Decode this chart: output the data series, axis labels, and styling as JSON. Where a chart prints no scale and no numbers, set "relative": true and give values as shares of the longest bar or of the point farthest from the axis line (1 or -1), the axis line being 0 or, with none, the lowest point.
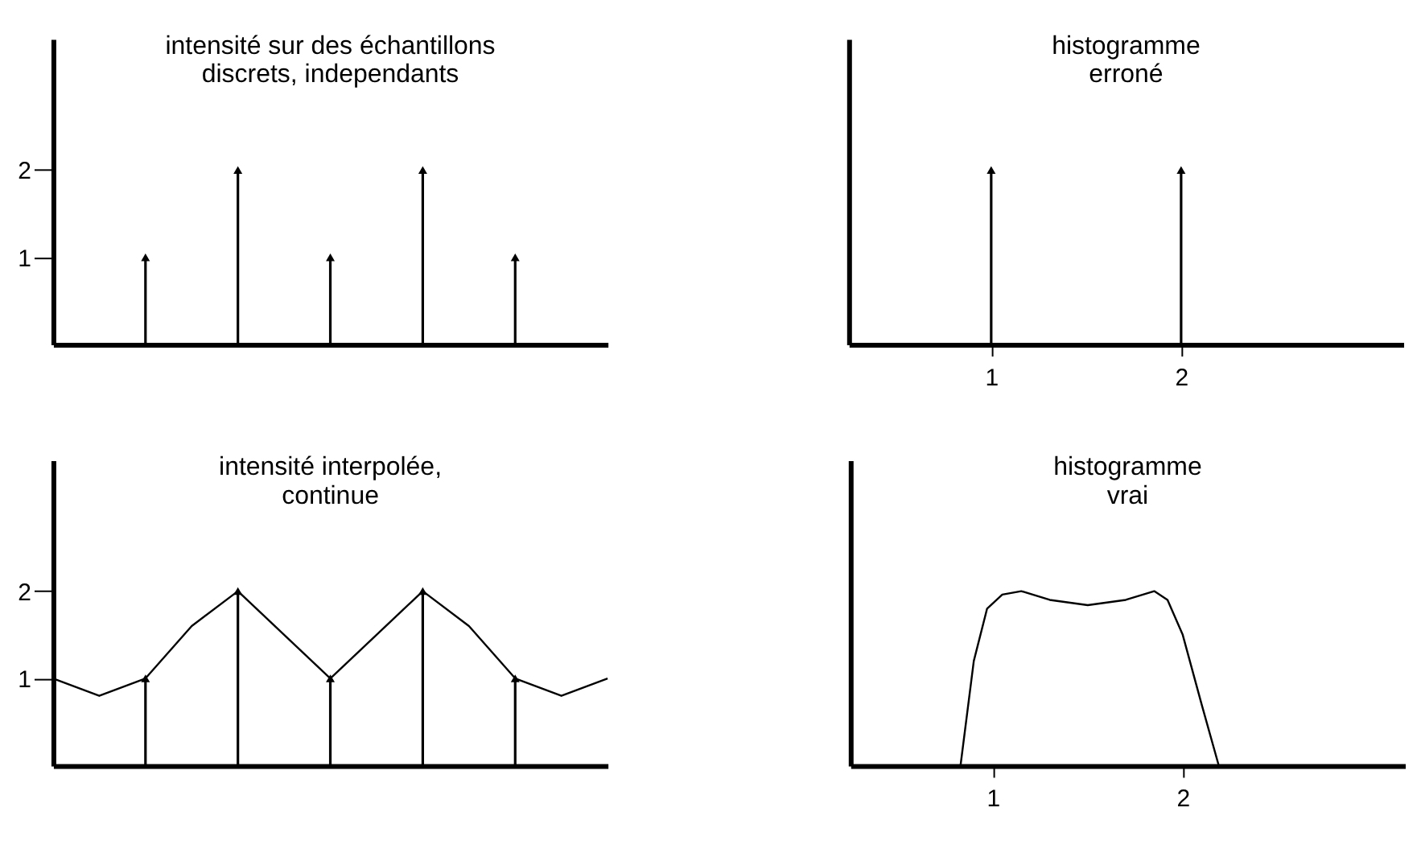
{
  "chart_data": [
    {
      "type": "lollipop",
      "title": [
        "intensité sur des échantillons",
        "discrets, independants"
      ],
      "categories": [
        null,
        null,
        null,
        null,
        null
      ],
      "values": [
        1,
        2,
        1,
        2,
        1
      ],
      "color": "#000000",
      "marker": "triangle",
      "ylim": [
        0,
        3.5
      ],
      "yticks": [
        1,
        2
      ],
      "tick_labels": "y",
      "grid": false
    },
    {
      "type": "bar",
      "title": [
        "histogramme",
        "erroné"
      ],
      "x": [
        1,
        2
      ],
      "values": [
        1,
        1
      ],
      "color": "#000000",
      "marker": "triangle",
      "relative": true,
      "xlim": [
        0.25,
        3.17
      ],
      "xticks": [
        1,
        2
      ],
      "tick_labels": "x",
      "grid": false
    },
    {
      "type": "line",
      "title": [
        "intensité interpolée,",
        "continue"
      ],
      "categories": [
        null,
        null,
        null,
        null,
        null,
        null,
        null,
        null,
        null,
        null,
        null,
        null,
        null
      ],
      "ylim": [
        0,
        3.5
      ],
      "yticks": [
        1,
        2
      ],
      "tick_labels": "y",
      "grid": false,
      "series": [
        {
          "type": "line",
          "color": "#000000",
          "values": [
            1.0,
            0.8,
            1.0,
            1.6,
            2.0,
            1.5,
            1.0,
            1.5,
            2.0,
            1.6,
            1.0,
            0.8,
            1.0
          ]
        },
        {
          "type": "lollipop",
          "color": "#000000",
          "marker": "triangle",
          "values": [
            null,
            null,
            1,
            null,
            2,
            null,
            1,
            null,
            2,
            null,
            1,
            null,
            null
          ]
        }
      ]
    },
    {
      "type": "line",
      "title": [
        "histogramme",
        "vrai"
      ],
      "x": [
        0.83,
        0.9,
        0.97,
        1.05,
        1.15,
        1.3,
        1.5,
        1.7,
        1.85,
        1.92,
        2.0,
        2.1,
        2.19
      ],
      "values": [
        0,
        0.6,
        0.9,
        0.98,
        1.0,
        0.95,
        0.92,
        0.95,
        1.0,
        0.95,
        0.75,
        0.35,
        0
      ],
      "color": "#000000",
      "relative": true,
      "xlim": [
        0.25,
        3.17
      ],
      "xticks": [
        1,
        2
      ],
      "tick_labels": "x",
      "grid": false
    }
  ]
}
